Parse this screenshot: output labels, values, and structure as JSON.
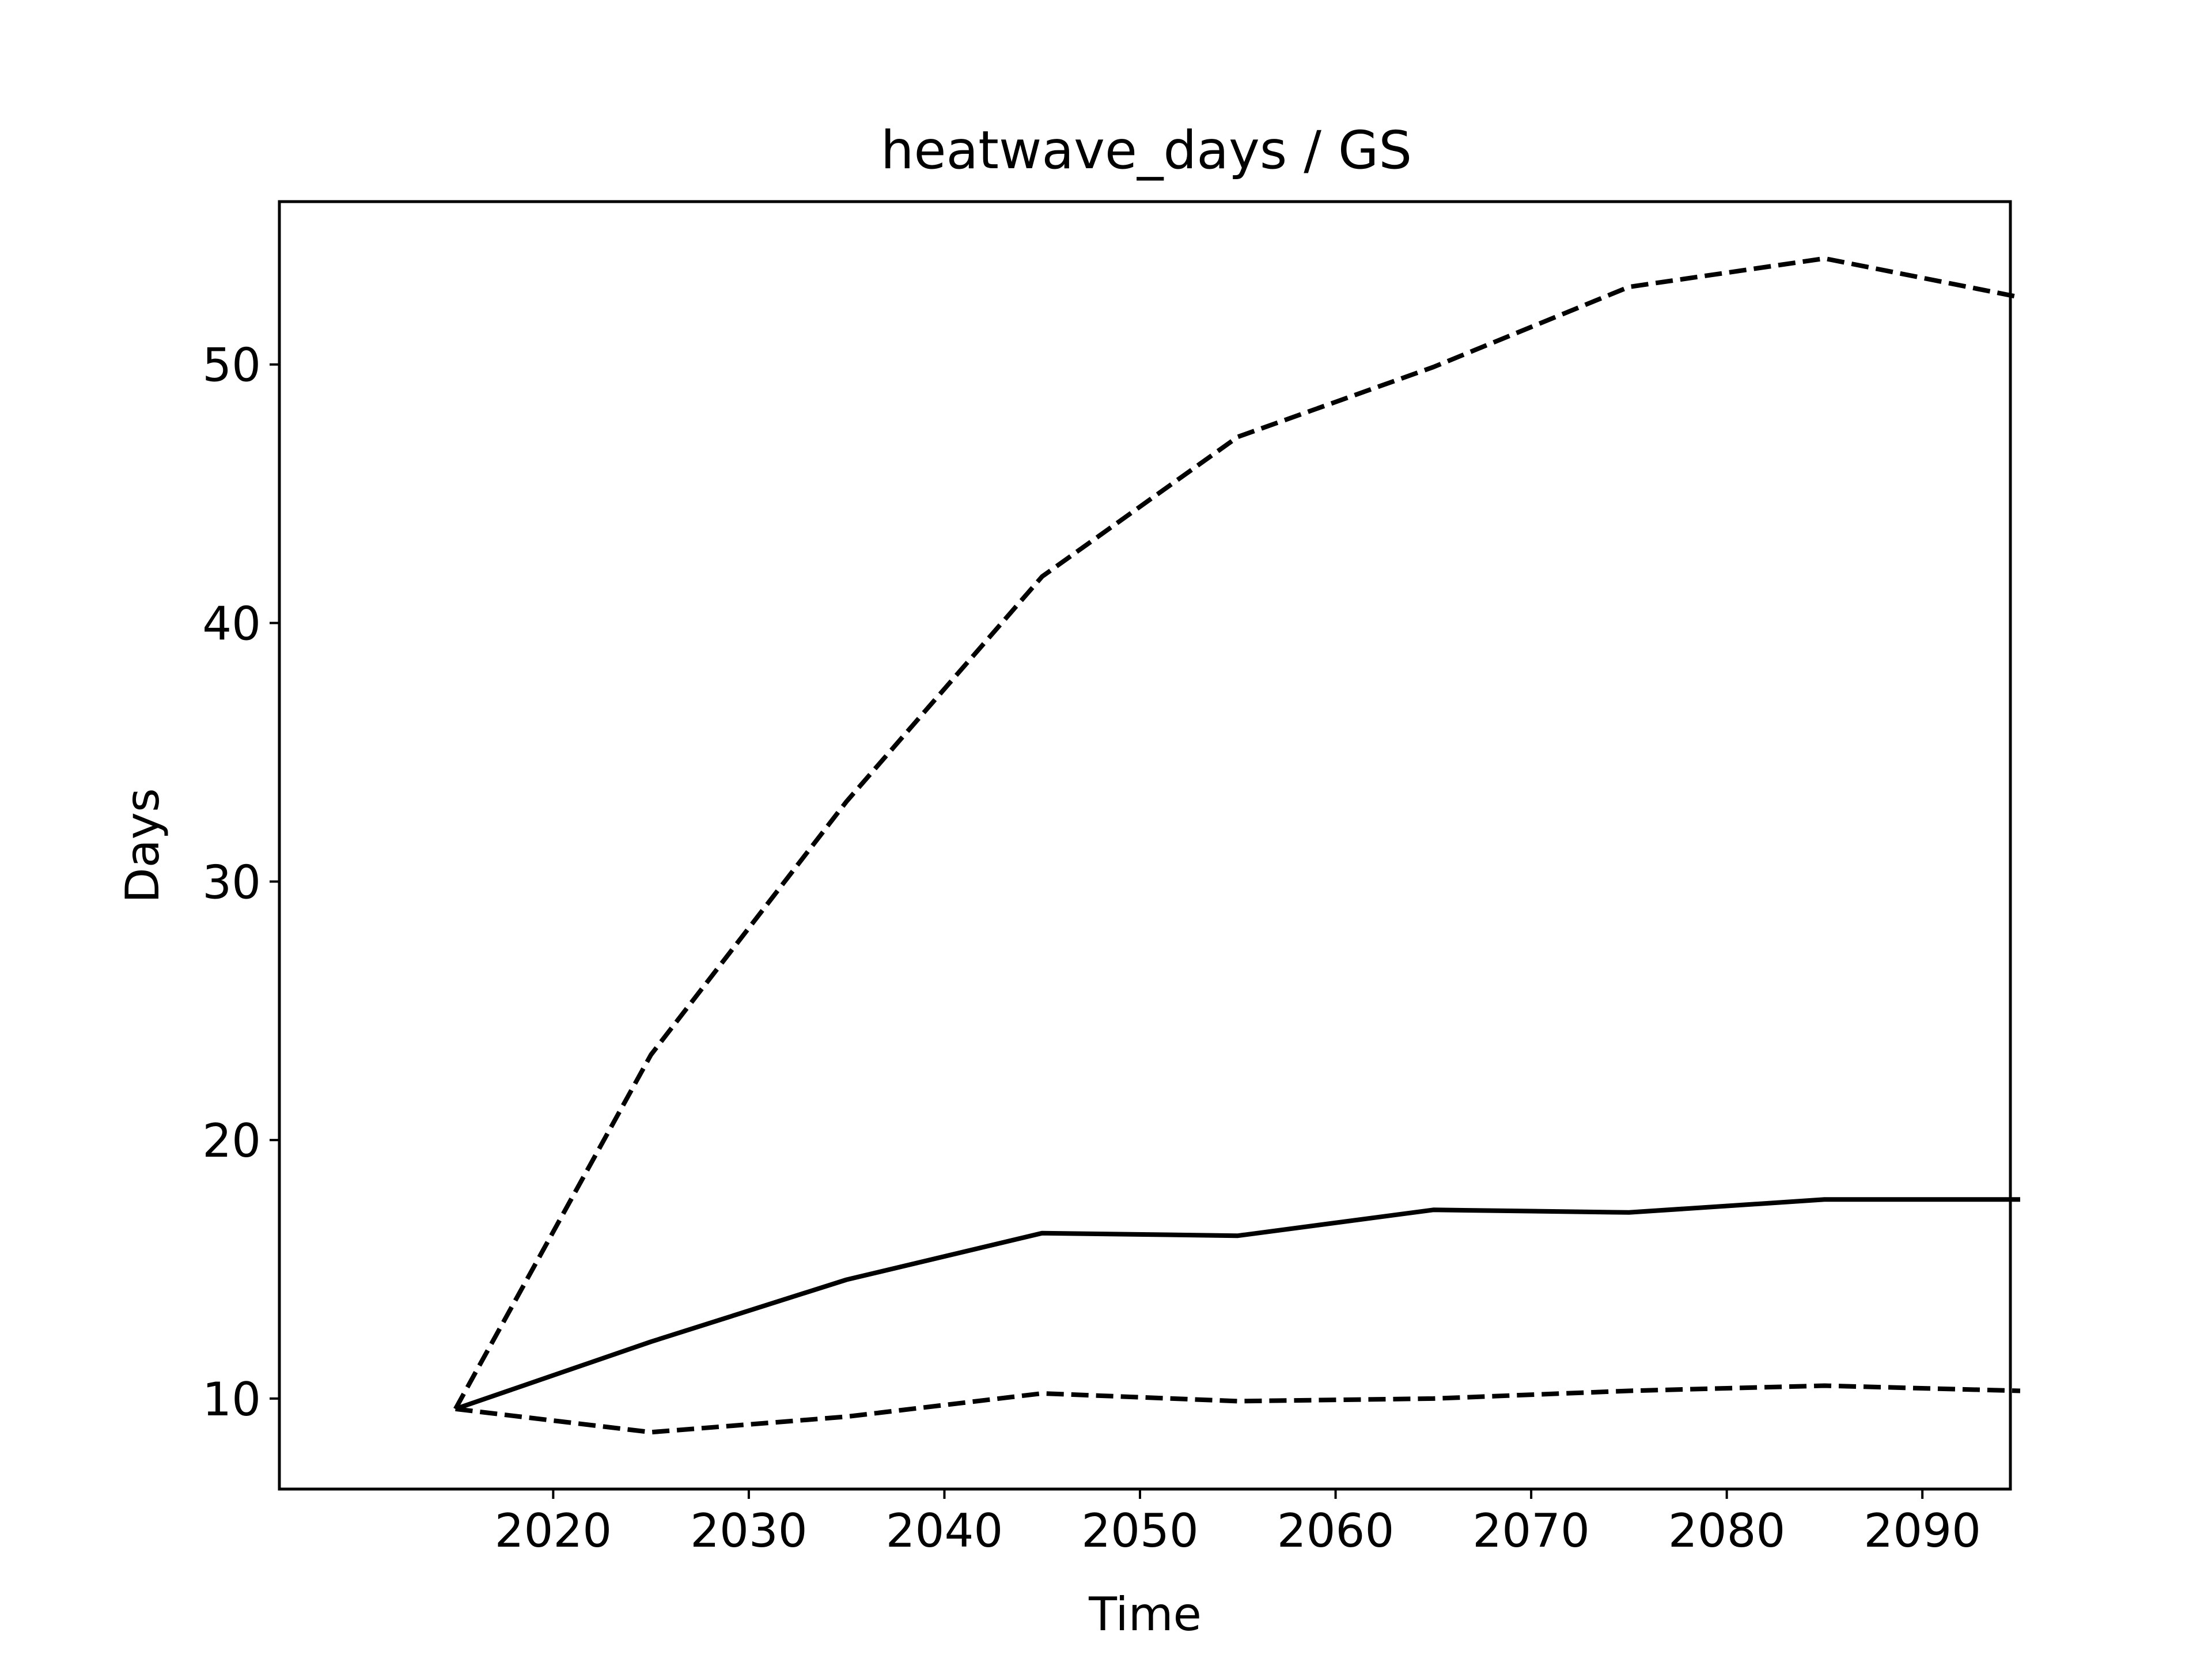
{
  "chart_data": {
    "type": "line",
    "title": "heatwave_days / GS",
    "xlabel": "Time",
    "ylabel": "Days",
    "x": [
      2015,
      2025,
      2035,
      2045,
      2055,
      2065,
      2075,
      2085,
      2095
    ],
    "xlim": [
      2006,
      2094.5
    ],
    "ylim": [
      6.5,
      56.3
    ],
    "xticks": [
      2020,
      2030,
      2040,
      2050,
      2060,
      2070,
      2080,
      2090
    ],
    "yticks": [
      10,
      20,
      30,
      40,
      50
    ],
    "grid": false,
    "legend": "none",
    "series": [
      {
        "style": "dashed",
        "color": "#000000",
        "values": [
          9.6,
          23.3,
          33.1,
          41.8,
          47.2,
          49.9,
          53.0,
          54.1,
          52.6
        ]
      },
      {
        "style": "solid",
        "color": "#000000",
        "values": [
          9.6,
          12.2,
          14.6,
          16.4,
          16.3,
          17.3,
          17.2,
          17.7,
          17.7
        ]
      },
      {
        "style": "dashed",
        "color": "#000000",
        "values": [
          9.6,
          8.7,
          9.3,
          10.2,
          9.9,
          10.0,
          10.3,
          10.5,
          10.3
        ]
      }
    ]
  }
}
